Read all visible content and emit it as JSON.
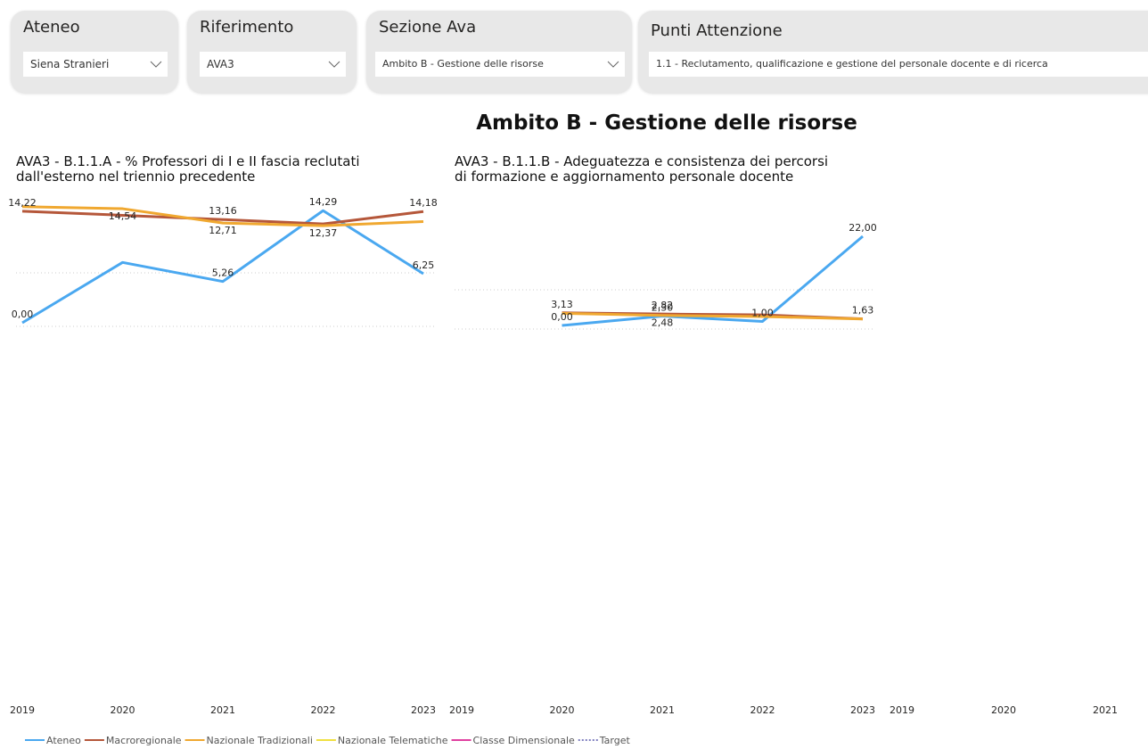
{
  "filters": [
    {
      "label": "Ateneo",
      "value": "Siena Stranieri"
    },
    {
      "label": "Riferimento",
      "value": "AVA3"
    },
    {
      "label": "Sezione Ava",
      "value": "Ambito B - Gestione delle risorse"
    },
    {
      "label": "Punti Attenzione",
      "value": "1.1 - Reclutamento, qualificazione e gestione del personale docente e di ricerca"
    }
  ],
  "title": "Ambito B - Gestione delle risorse",
  "chart_data": [
    {
      "type": "line",
      "title": [
        "AVA3 - B.1.1.A - % Professori di I e II fascia reclutati",
        "dall'esterno nel triennio precedente"
      ],
      "categories": [
        "2019",
        "2020",
        "2021",
        "2022",
        "2023"
      ],
      "ylim": [
        0,
        15
      ],
      "series": [
        {
          "name": "Ateneo",
          "color": "#4aa8f0",
          "values": [
            0,
            7.69,
            5.26,
            14.29,
            6.25
          ],
          "value_labels": [
            "0,00",
            null,
            "5,26",
            "14,29",
            "6,25"
          ]
        },
        {
          "name": "Macroregionale",
          "color": "#b5573a",
          "values": [
            14.22,
            13.7,
            13.16,
            12.6,
            14.18
          ],
          "value_labels": [
            "14,22",
            null,
            "13,16",
            null,
            "14,18"
          ]
        },
        {
          "name": "Nazionale Tradizionali",
          "color": "#f0a830",
          "values": [
            14.8,
            14.54,
            12.71,
            12.37,
            12.9
          ],
          "value_labels": [
            null,
            "14,54",
            "12,71",
            "12,37",
            null
          ]
        },
        {
          "name": "Nazionale Telematiche",
          "color": "#f0e040",
          "values": [
            null,
            null,
            null,
            null,
            null
          ]
        },
        {
          "name": "Classe Dimensionale",
          "color": "#e040a0",
          "values": [
            null,
            null,
            null,
            null,
            null
          ]
        },
        {
          "name": "Target",
          "color": "#8080c0",
          "dotted": true,
          "values": [
            null,
            null,
            null,
            null,
            null
          ]
        }
      ]
    },
    {
      "type": "line",
      "title": [
        "AVA3 - B.1.1.B - Adeguatezza e consistenza dei percorsi",
        "di formazione e aggiornamento personale docente"
      ],
      "categories": [
        "2019",
        "2020",
        "2021",
        "2022",
        "2023"
      ],
      "ylim": [
        0,
        22
      ],
      "series": [
        {
          "name": "Ateneo",
          "color": "#4aa8f0",
          "values": [
            null,
            0,
            2.3,
            1,
            22
          ],
          "value_labels": [
            null,
            "0,00",
            "2,30",
            "1,00",
            "22,00"
          ]
        },
        {
          "name": "Macroregionale",
          "color": "#b5573a",
          "values": [
            null,
            3.13,
            2.82,
            2.6,
            1.63
          ],
          "value_labels": [
            null,
            "3,13",
            "2,82",
            null,
            "1,63"
          ]
        },
        {
          "name": "Nazionale Tradizionali",
          "color": "#f0a830",
          "values": [
            null,
            3.0,
            2.48,
            2.2,
            1.6
          ],
          "value_labels": [
            null,
            null,
            "2,48",
            null,
            null
          ]
        }
      ]
    },
    {
      "type": "line",
      "categories": [
        "2019",
        "2020",
        "2021"
      ],
      "series": []
    }
  ]
}
